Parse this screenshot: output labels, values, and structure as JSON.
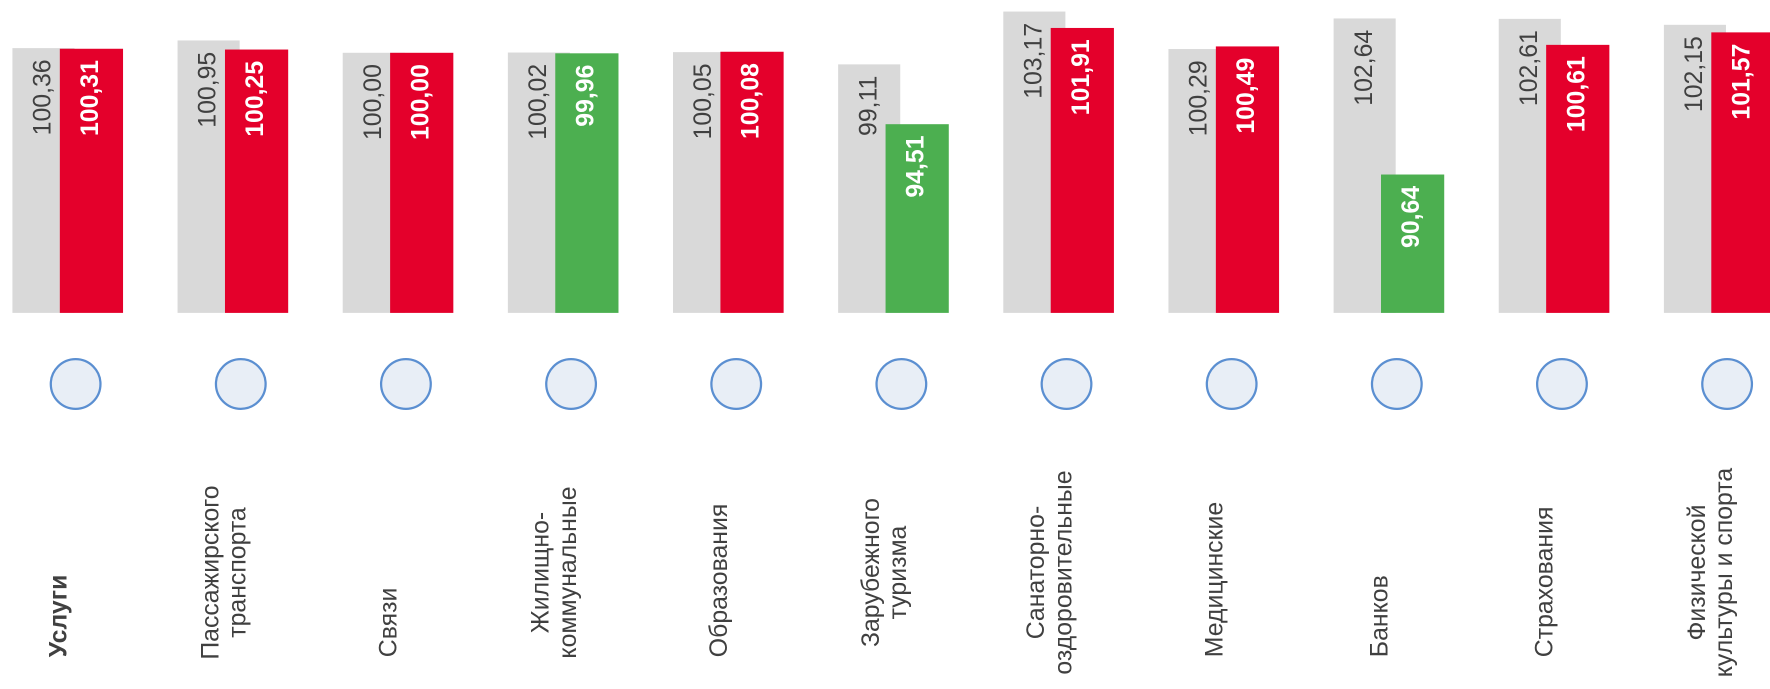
{
  "chart_data": {
    "type": "bar",
    "categories": [
      "Услуги",
      "Пассажирского\nтранспорта",
      "Связи",
      "Жилищно-\nкоммунальные",
      "Образования",
      "Зарубежного\nтуризма",
      "Санаторно-\nоздоровительные",
      "Медицинские",
      "Банков",
      "Страхования",
      "Физической\nкультуры и спорта"
    ],
    "series": [
      {
        "color": "#d9d9d9",
        "values": [
          100.36,
          100.95,
          100.0,
          100.02,
          100.05,
          99.11,
          103.17,
          100.29,
          102.64,
          102.61,
          102.15
        ],
        "value_labels": [
          "100,36",
          "100,95",
          "100,00",
          "100,02",
          "100,05",
          "99,11",
          "103,17",
          "100,29",
          "102,64",
          "102,61",
          "102,15"
        ]
      },
      {
        "colors": [
          "#e4002b",
          "#e4002b",
          "#e4002b",
          "#4caf50",
          "#e4002b",
          "#4caf50",
          "#e4002b",
          "#e4002b",
          "#4caf50",
          "#e4002b",
          "#e4002b"
        ],
        "values": [
          100.31,
          100.25,
          100.0,
          99.96,
          100.08,
          94.51,
          101.91,
          100.49,
          90.64,
          100.61,
          101.57
        ],
        "value_labels": [
          "100,31",
          "100,25",
          "100,00",
          "99,96",
          "100,08",
          "94,51",
          "101,91",
          "100,49",
          "90,64",
          "100,61",
          "101,57"
        ]
      }
    ],
    "ylim": [
      80,
      104
    ]
  }
}
